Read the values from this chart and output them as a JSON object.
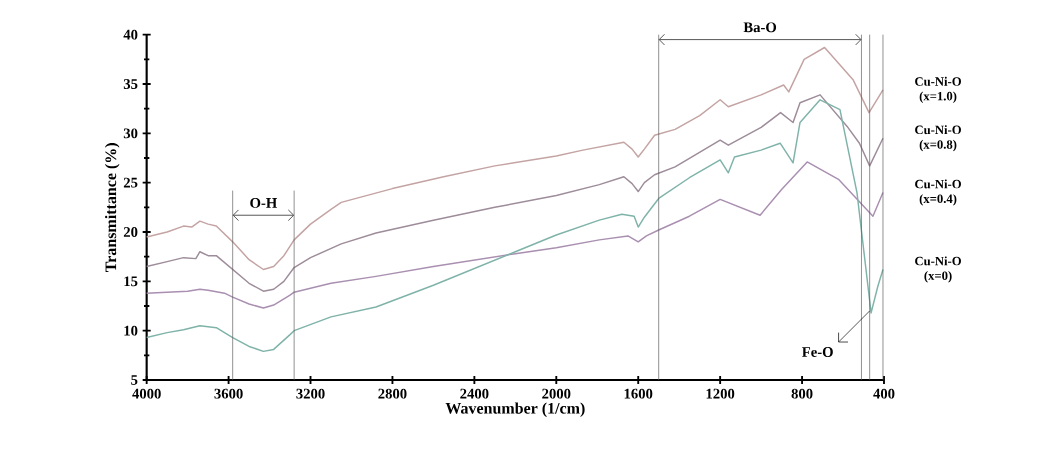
{
  "chart_data": {
    "type": "line",
    "xlabel": "Wavenumber (1/cm)",
    "ylabel": "Transmittance (%)",
    "xlim": [
      4000,
      400
    ],
    "ylim": [
      5,
      40
    ],
    "xticks": [
      4000,
      3600,
      3200,
      2800,
      2400,
      2000,
      1600,
      1200,
      800,
      400
    ],
    "yticks": [
      5,
      {
        "value": 7.5,
        "label": null
      },
      10,
      {
        "value": 12.5,
        "label": null
      },
      15,
      {
        "value": 17.5,
        "label": null
      },
      20,
      {
        "value": 22.5,
        "label": null
      },
      25,
      {
        "value": 27.5,
        "label": null
      },
      30,
      {
        "value": 32.5,
        "label": null
      },
      35,
      {
        "value": 37.5,
        "label": null
      },
      40
    ],
    "series": [
      {
        "name": "Cu-Ni-O (x=1.0)",
        "color": "#c4a3a3",
        "x": [
          4000,
          3900,
          3820,
          3780,
          3740,
          3700,
          3660,
          3580,
          3500,
          3430,
          3380,
          3330,
          3280,
          3200,
          3100,
          3050,
          2800,
          2550,
          2300,
          2000,
          1870,
          1670,
          1630,
          1600,
          1570,
          1520,
          1420,
          1300,
          1200,
          1160,
          1000,
          890,
          865,
          790,
          690,
          550,
          473,
          405
        ],
        "values": [
          19.5,
          20.0,
          20.6,
          20.5,
          21.1,
          20.8,
          20.6,
          19.0,
          17.2,
          16.2,
          16.5,
          17.6,
          19.2,
          20.8,
          22.3,
          23.0,
          24.4,
          25.6,
          26.7,
          27.7,
          28.3,
          29.1,
          28.4,
          27.6,
          28.4,
          29.8,
          30.4,
          31.8,
          33.4,
          32.7,
          33.9,
          34.9,
          34.2,
          37.5,
          38.7,
          35.4,
          32.1,
          34.4
        ]
      },
      {
        "name": "Cu-Ni-O (x=0.8)",
        "color": "#9d8c99",
        "x": [
          4000,
          3900,
          3820,
          3760,
          3740,
          3700,
          3660,
          3580,
          3500,
          3430,
          3380,
          3330,
          3280,
          3200,
          3050,
          2880,
          2600,
          2300,
          2000,
          1790,
          1670,
          1630,
          1600,
          1570,
          1520,
          1420,
          1200,
          1160,
          1000,
          905,
          844,
          810,
          712,
          580,
          520,
          470,
          405
        ],
        "values": [
          16.5,
          17.0,
          17.4,
          17.3,
          18.0,
          17.6,
          17.6,
          16.2,
          14.8,
          14.0,
          14.2,
          15.0,
          16.4,
          17.4,
          18.8,
          19.9,
          21.2,
          22.5,
          23.7,
          24.8,
          25.6,
          24.9,
          24.1,
          25.0,
          25.8,
          26.6,
          29.3,
          28.8,
          30.6,
          32.1,
          31.1,
          33.1,
          33.9,
          30.7,
          29.0,
          26.7,
          29.5
        ]
      },
      {
        "name": "Cu-Ni-O (x=0.4)",
        "color": "#a98fb0",
        "x": [
          4000,
          3900,
          3800,
          3740,
          3700,
          3620,
          3580,
          3500,
          3430,
          3380,
          3300,
          3280,
          3100,
          2880,
          2600,
          2200,
          2000,
          1790,
          1650,
          1600,
          1560,
          1500,
          1350,
          1200,
          1005,
          900,
          775,
          620,
          454,
          405
        ],
        "values": [
          13.8,
          13.9,
          14.0,
          14.2,
          14.1,
          13.8,
          13.4,
          12.7,
          12.3,
          12.6,
          13.6,
          13.9,
          14.8,
          15.5,
          16.5,
          17.8,
          18.4,
          19.2,
          19.6,
          19.0,
          19.6,
          20.2,
          21.6,
          23.3,
          21.7,
          24.3,
          27.1,
          25.3,
          21.6,
          24.0
        ]
      },
      {
        "name": "Cu-Ni-O (x=0)",
        "color": "#7fb3a9",
        "x": [
          4000,
          3900,
          3820,
          3740,
          3660,
          3580,
          3500,
          3430,
          3380,
          3300,
          3280,
          3100,
          2880,
          2600,
          2200,
          2000,
          1790,
          1680,
          1620,
          1600,
          1570,
          1500,
          1350,
          1200,
          1160,
          1130,
          1000,
          907,
          844,
          810,
          712,
          615,
          532,
          463,
          430,
          405
        ],
        "values": [
          9.3,
          9.8,
          10.1,
          10.5,
          10.3,
          9.3,
          8.4,
          7.9,
          8.1,
          9.6,
          10.0,
          11.4,
          12.4,
          14.6,
          18.0,
          19.7,
          21.2,
          21.8,
          21.6,
          20.5,
          21.5,
          23.4,
          25.5,
          27.3,
          26.0,
          27.6,
          28.3,
          29.0,
          27.0,
          31.1,
          33.4,
          32.4,
          24.0,
          11.8,
          14.5,
          16.2
        ]
      }
    ],
    "annotations": [
      "O-H",
      "Ba-O"
    ],
    "ref_lines": [
      {
        "axis": "x",
        "value": 3580
      },
      {
        "axis": "x",
        "value": 3280
      },
      {
        "axis": "x",
        "value": 1500
      },
      {
        "axis": "x",
        "value": 510
      },
      {
        "axis": "x",
        "value": 470,
        "label": "Fe-O"
      },
      {
        "axis": "x",
        "value": 405
      }
    ]
  }
}
